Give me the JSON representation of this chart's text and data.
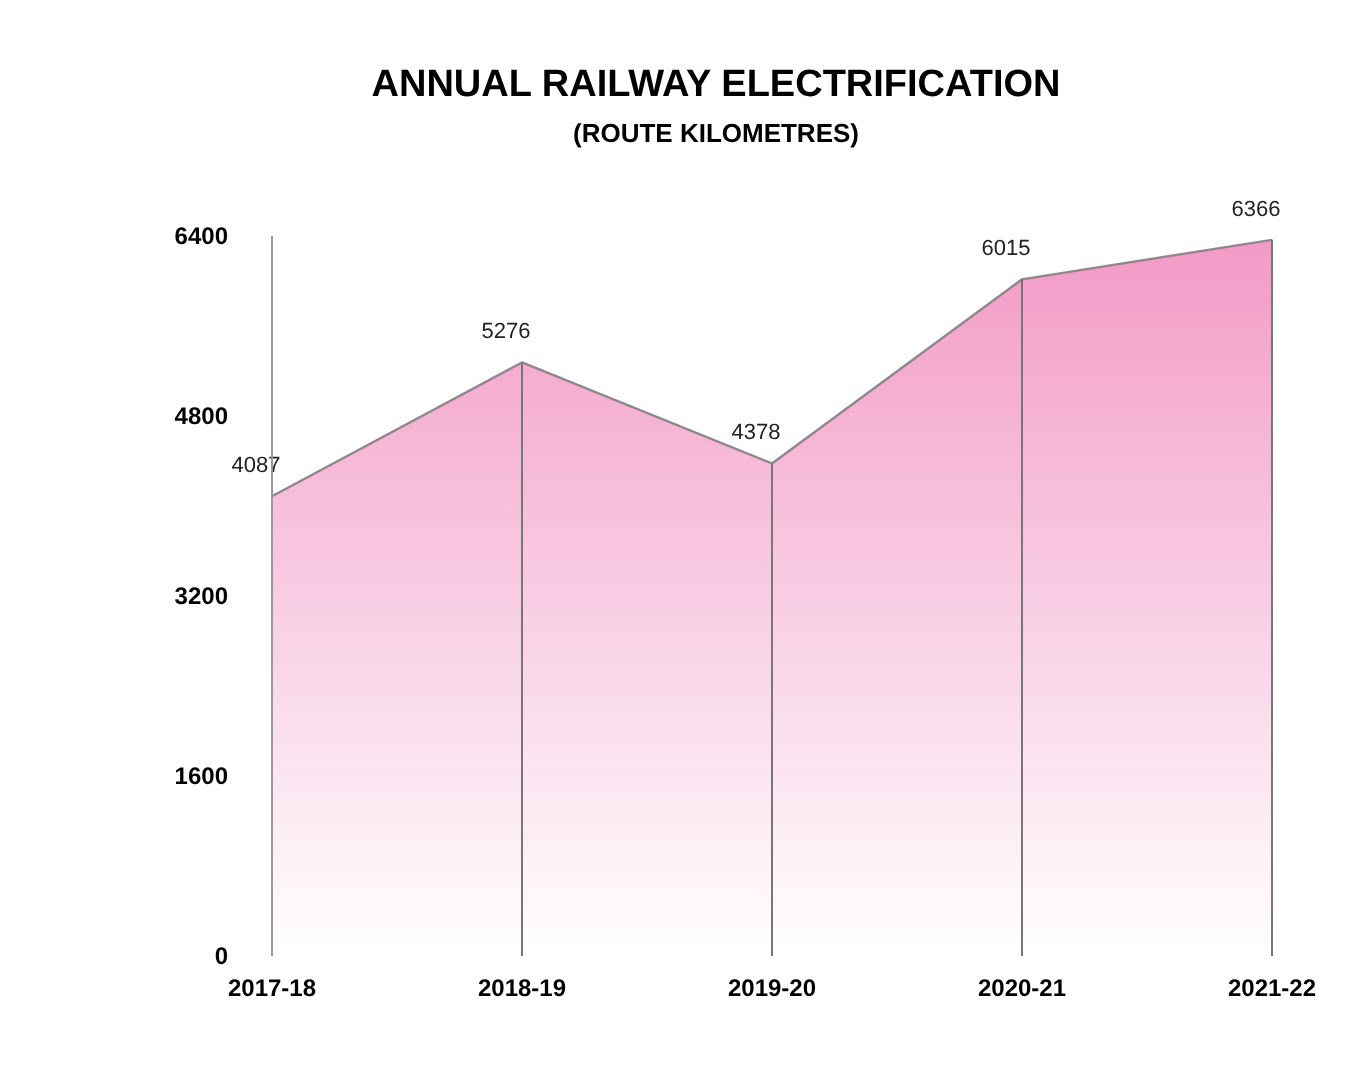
{
  "chart_data": {
    "type": "area",
    "title": "ANNUAL RAILWAY ELECTRIFICATION",
    "subtitle": "(ROUTE KILOMETRES)",
    "categories": [
      "2017-18",
      "2018-19",
      "2019-20",
      "2020-21",
      "2021-22"
    ],
    "series": [
      {
        "color": "#f29ac6",
        "values": [
          4087,
          5276,
          4378,
          6015,
          6366
        ]
      }
    ],
    "ylim": [
      0,
      6400
    ],
    "yticks": [
      0,
      1600,
      3200,
      4800,
      6400
    ],
    "data_labels": true,
    "grid": "x"
  }
}
